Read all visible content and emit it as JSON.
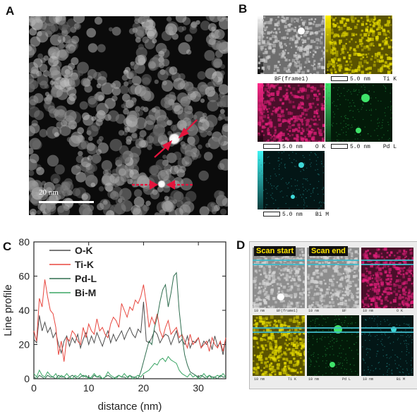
{
  "figure": {
    "panel_letters": [
      "A",
      "B",
      "C",
      "D"
    ],
    "panelA": {
      "scale_label": "20 nm"
    },
    "panelB": {
      "tiles": [
        {
          "scale": "",
          "element": "BF(frame1)",
          "color": "#bdbdbd"
        },
        {
          "scale": "5.0 nm",
          "element": "Ti K",
          "color": "#d9d200"
        },
        {
          "scale": "5.0 nm",
          "element": "O K",
          "color": "#e0207a"
        },
        {
          "scale": "5.0 nm",
          "element": "Pd L",
          "color": "#27c24a"
        },
        {
          "scale": "5.0 nm",
          "element": "Bi M",
          "color": "#27c2c2"
        }
      ]
    },
    "panelD": {
      "scan_start": "Scan start",
      "scan_end": "Scan end",
      "tiles": [
        {
          "label": "BF(frame1)",
          "scale": "10 nm",
          "color": "#bdbdbd"
        },
        {
          "label": "BF",
          "scale": "10 nm",
          "color": "#bdbdbd"
        },
        {
          "label": "O K",
          "scale": "10 nm",
          "color": "#e0207a"
        },
        {
          "label": "Ti K",
          "scale": "10 nm",
          "color": "#d9d200"
        },
        {
          "label": "Pd L",
          "scale": "10 nm",
          "color": "#27c24a"
        },
        {
          "label": "Bi M",
          "scale": "10 nm",
          "color": "#27c2c2"
        }
      ]
    }
  },
  "chart_data": {
    "type": "line",
    "xlabel": "distance (nm)",
    "ylabel": "Line profile",
    "xlim": [
      0,
      35
    ],
    "ylim": [
      0,
      80
    ],
    "xticks": [
      0,
      10,
      20,
      30
    ],
    "yticks": [
      0,
      20,
      40,
      60,
      80
    ],
    "legend_position": "top-left",
    "x": [
      0,
      0.5,
      1,
      1.5,
      2,
      2.5,
      3,
      3.5,
      4,
      4.5,
      5,
      5.5,
      6,
      6.5,
      7,
      7.5,
      8,
      8.5,
      9,
      9.5,
      10,
      10.5,
      11,
      11.5,
      12,
      12.5,
      13,
      13.5,
      14,
      14.5,
      15,
      15.5,
      16,
      16.5,
      17,
      17.5,
      18,
      18.5,
      19,
      19.5,
      20,
      20.5,
      21,
      21.5,
      22,
      22.5,
      23,
      23.5,
      24,
      24.5,
      25,
      25.5,
      26,
      26.5,
      27,
      27.5,
      28,
      28.5,
      29,
      29.5,
      30,
      30.5,
      31,
      31.5,
      32,
      32.5,
      33,
      33.5,
      34,
      34.5,
      35
    ],
    "series": [
      {
        "name": "O-K",
        "color": "#4d4d4d",
        "values": [
          23,
          21,
          37,
          28,
          33,
          27,
          30,
          24,
          27,
          20,
          15,
          22,
          25,
          19,
          24,
          21,
          26,
          18,
          23,
          27,
          20,
          25,
          21,
          27,
          23,
          19,
          24,
          28,
          21,
          26,
          22,
          25,
          28,
          23,
          27,
          30,
          26,
          24,
          29,
          27,
          45,
          22,
          21,
          24,
          28,
          26,
          21,
          24,
          26,
          25,
          20,
          24,
          28,
          21,
          23,
          20,
          25,
          18,
          22,
          21,
          24,
          18,
          22,
          20,
          23,
          17,
          25,
          19,
          21,
          14,
          24
        ]
      },
      {
        "name": "Ti-K",
        "color": "#e8473f",
        "values": [
          28,
          22,
          47,
          42,
          58,
          48,
          40,
          38,
          30,
          14,
          22,
          10,
          24,
          22,
          28,
          26,
          22,
          20,
          30,
          24,
          32,
          28,
          26,
          35,
          28,
          30,
          26,
          24,
          32,
          36,
          34,
          30,
          44,
          40,
          36,
          42,
          40,
          46,
          44,
          48,
          55,
          44,
          30,
          36,
          32,
          38,
          28,
          24,
          30,
          34,
          26,
          28,
          30,
          24,
          26,
          22,
          18,
          26,
          20,
          22,
          24,
          18,
          20,
          22,
          16,
          24,
          20,
          18,
          22,
          16,
          24
        ]
      },
      {
        "name": "Pd-L",
        "color": "#2f6d4f",
        "values": [
          1,
          0,
          2,
          1,
          0,
          2,
          1,
          1,
          0,
          2,
          1,
          1,
          0,
          1,
          2,
          1,
          0,
          1,
          2,
          1,
          1,
          0,
          2,
          1,
          1,
          0,
          1,
          2,
          1,
          0,
          1,
          2,
          1,
          1,
          0,
          2,
          1,
          1,
          0,
          4,
          10,
          16,
          22,
          20,
          30,
          36,
          45,
          52,
          55,
          42,
          50,
          60,
          62,
          40,
          25,
          14,
          8,
          4,
          3,
          2,
          1,
          2,
          1,
          0,
          2,
          1,
          1,
          0,
          2,
          1,
          1
        ]
      },
      {
        "name": "Bi-M",
        "color": "#3aa564",
        "values": [
          3,
          1,
          5,
          2,
          1,
          4,
          2,
          1,
          3,
          0,
          2,
          1,
          3,
          1,
          0,
          2,
          1,
          3,
          1,
          2,
          0,
          1,
          3,
          1,
          2,
          0,
          1,
          4,
          2,
          1,
          0,
          2,
          1,
          3,
          1,
          2,
          0,
          1,
          2,
          1,
          3,
          4,
          5,
          7,
          9,
          8,
          11,
          12,
          10,
          13,
          11,
          10,
          9,
          5,
          3,
          2,
          1,
          3,
          1,
          2,
          0,
          1,
          3,
          1,
          2,
          0,
          1,
          2,
          1,
          3,
          1
        ]
      }
    ]
  }
}
